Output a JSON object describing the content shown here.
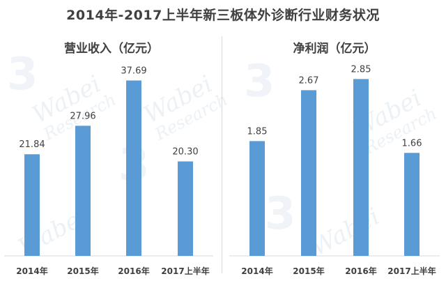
{
  "title": "2014年-2017上半年新三板体外诊断行业财务状况",
  "watermark": {
    "brand": "Wabei",
    "sub": "Research"
  },
  "colors": {
    "bar": "#5b9bd5",
    "text": "#404040",
    "axis": "#d9d9d9"
  },
  "chart_data": [
    {
      "type": "bar",
      "title": "营业收入（亿元）",
      "categories": [
        "2014年",
        "2015年",
        "2016年",
        "2017上半年"
      ],
      "values": [
        21.84,
        27.96,
        37.69,
        20.3
      ],
      "value_labels": [
        "21.84",
        "27.96",
        "37.69",
        "20.30"
      ],
      "ylim": [
        0,
        40
      ],
      "xlabel": "",
      "ylabel": "",
      "grid": false,
      "legend": "none"
    },
    {
      "type": "bar",
      "title": "净利润（亿元）",
      "categories": [
        "2014年",
        "2015年",
        "2016年",
        "2017上半年"
      ],
      "values": [
        1.85,
        2.67,
        2.85,
        1.66
      ],
      "value_labels": [
        "1.85",
        "2.67",
        "2.85",
        "1.66"
      ],
      "ylim": [
        0,
        3.0
      ],
      "xlabel": "",
      "ylabel": "",
      "grid": false,
      "legend": "none"
    }
  ]
}
